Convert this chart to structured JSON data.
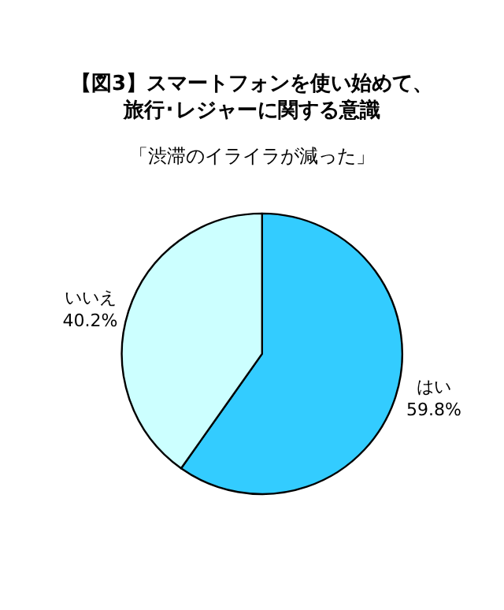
{
  "chart_data": {
    "type": "pie",
    "title": "【図3】スマートフォンを使い始めて、旅行･レジャーに関する意識",
    "subtitle": "「渋滞のイライラが減った」",
    "categories": [
      "はい",
      "いいえ"
    ],
    "values": [
      59.8,
      40.2
    ],
    "value_labels": [
      "59.8%",
      "40.2%"
    ],
    "colors": [
      "#33ccff",
      "#ccffff"
    ],
    "legend": false
  }
}
